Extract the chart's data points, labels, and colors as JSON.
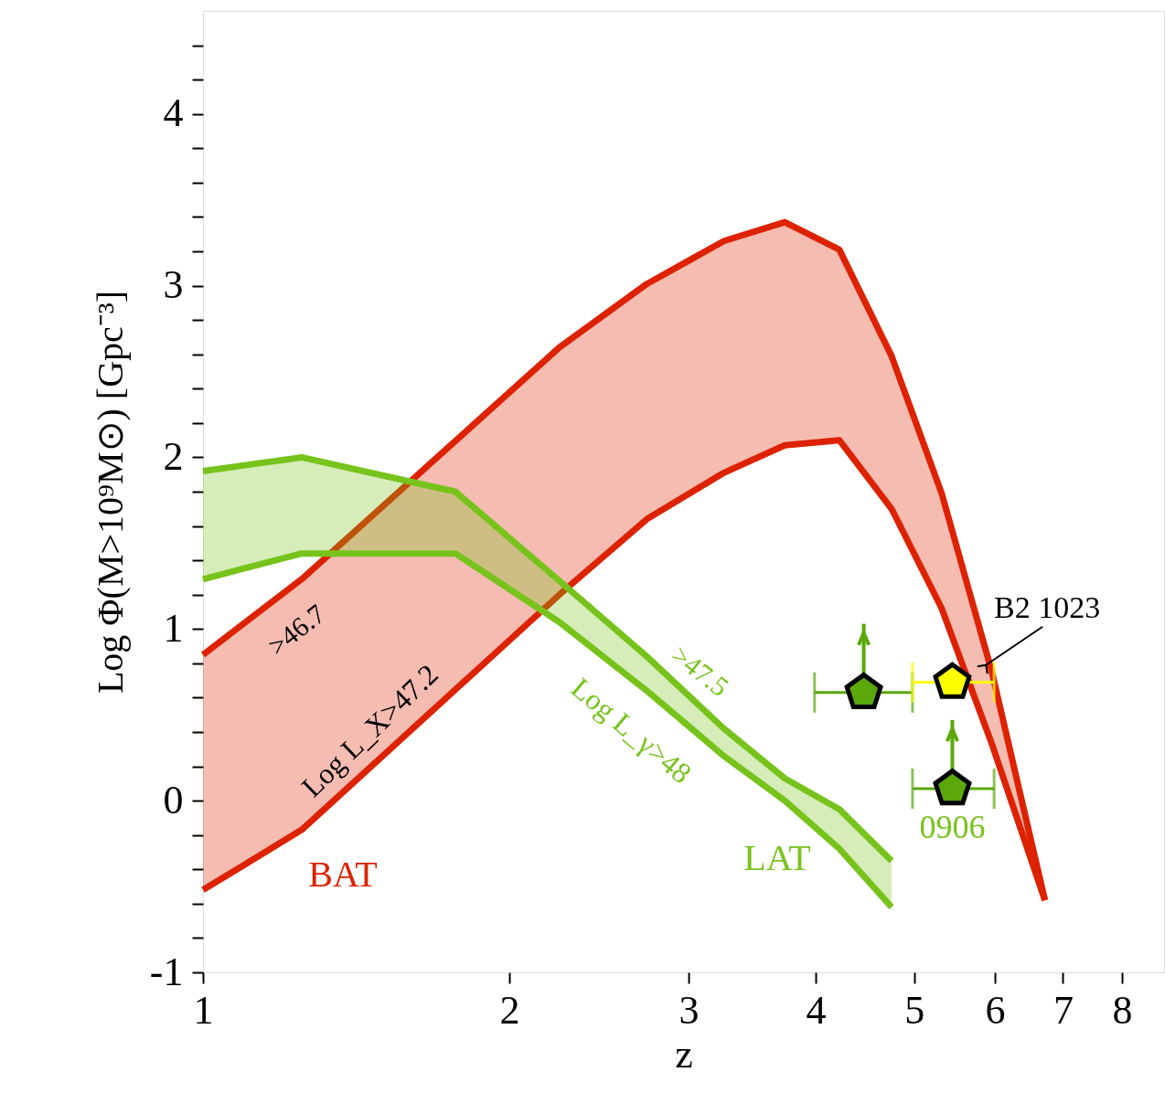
{
  "chart_data": {
    "type": "line",
    "xlabel": "z",
    "ylabel": "Log  Φ(M>10⁹M⊙)  [Gpc⁻³]",
    "log": "x",
    "xlim": [
      1,
      8.8
    ],
    "xticks": [
      1,
      2,
      3,
      4,
      5,
      6,
      7,
      8
    ],
    "ylim": [
      -1,
      4.6
    ],
    "yticks": [
      -1,
      {
        "value": -0.8,
        "label": null
      },
      {
        "value": -0.6,
        "label": null
      },
      {
        "value": -0.4,
        "label": null
      },
      {
        "value": -0.2,
        "label": null
      },
      0,
      {
        "value": 0.2,
        "label": null
      },
      {
        "value": 0.4,
        "label": null
      },
      {
        "value": 0.6,
        "label": null
      },
      {
        "value": 0.8,
        "label": null
      },
      1,
      {
        "value": 1.2,
        "label": null
      },
      {
        "value": 1.4,
        "label": null
      },
      {
        "value": 1.6,
        "label": null
      },
      {
        "value": 1.8,
        "label": null
      },
      2,
      {
        "value": 2.2,
        "label": null
      },
      {
        "value": 2.4,
        "label": null
      },
      {
        "value": 2.6,
        "label": null
      },
      {
        "value": 2.8,
        "label": null
      },
      3,
      {
        "value": 3.2,
        "label": null
      },
      {
        "value": 3.4,
        "label": null
      },
      {
        "value": 3.6,
        "label": null
      },
      {
        "value": 3.8,
        "label": null
      },
      4,
      {
        "value": 4.2,
        "label": null
      },
      {
        "value": 4.4,
        "label": null
      }
    ],
    "series": [
      {
        "color": "#dd2200",
        "x": [
          1,
          1.25,
          2.24,
          2.73,
          3.25,
          3.73,
          4.22,
          4.75,
          5.32,
          5.96,
          6.72
        ],
        "values": [
          0.85,
          1.29,
          2.64,
          3.01,
          3.26,
          3.37,
          3.21,
          2.59,
          1.79,
          0.75,
          -0.58
        ],
        "lower": [
          -0.52,
          -0.17,
          1.2,
          1.64,
          1.91,
          2.07,
          2.1,
          1.7,
          1.12,
          0.33,
          -0.58
        ],
        "upper": [
          0.85,
          1.29,
          2.64,
          3.01,
          3.26,
          3.37,
          3.21,
          2.59,
          1.79,
          0.75,
          -0.58
        ]
      },
      {
        "color": "#dd2200",
        "x": [
          1,
          1.25,
          2.24,
          2.73,
          3.25,
          3.73,
          4.22,
          4.75,
          5.32,
          5.96,
          6.72
        ],
        "values": [
          -0.52,
          -0.17,
          1.2,
          1.64,
          1.91,
          2.07,
          2.1,
          1.7,
          1.12,
          0.33,
          -0.58
        ]
      },
      {
        "color": "#77c31c",
        "x": [
          1,
          1.25,
          1.77,
          2.24,
          2.73,
          3.25,
          3.73,
          4.22,
          4.75
        ],
        "values": [
          1.92,
          2.0,
          1.8,
          1.28,
          0.84,
          0.42,
          0.13,
          -0.05,
          -0.35
        ],
        "lower": [
          1.29,
          1.44,
          1.44,
          1.04,
          0.64,
          0.26,
          0.0,
          -0.28,
          -0.62
        ],
        "upper": [
          1.92,
          2.0,
          1.8,
          1.28,
          0.84,
          0.42,
          0.13,
          -0.05,
          -0.35
        ]
      },
      {
        "color": "#77c31c",
        "x": [
          1,
          1.25,
          1.77,
          2.24,
          2.73,
          3.25,
          3.73,
          4.22,
          4.75
        ],
        "values": [
          1.29,
          1.44,
          1.44,
          1.04,
          0.64,
          0.26,
          0.0,
          -0.28,
          -0.62
        ]
      },
      {
        "type": "scatter",
        "color": "#5aa80a",
        "x": [
          4.46,
          5.45
        ],
        "values": [
          0.63,
          0.07
        ],
        "xerrors": [
          [
            3.99,
            4.98
          ],
          [
            4.98,
            5.99
          ]
        ],
        "errors": [
          [
            0.63,
            1.03
          ],
          [
            0.07,
            0.47
          ]
        ]
      },
      {
        "type": "scatter",
        "color": "#ffff00",
        "x": [
          5.45
        ],
        "values": [
          0.69
        ],
        "xerrors": [
          [
            4.98,
            5.99
          ]
        ]
      }
    ],
    "annotations": [
      ">46.7",
      "Log L_X>47.2",
      "BAT",
      ">47.5",
      "Log L_γ>48",
      "LAT",
      {
        "text": "0906",
        "x": 5.45,
        "y": 0.07
      },
      {
        "text": "B2 1023",
        "x": 5.88,
        "y": 0.79
      }
    ]
  }
}
